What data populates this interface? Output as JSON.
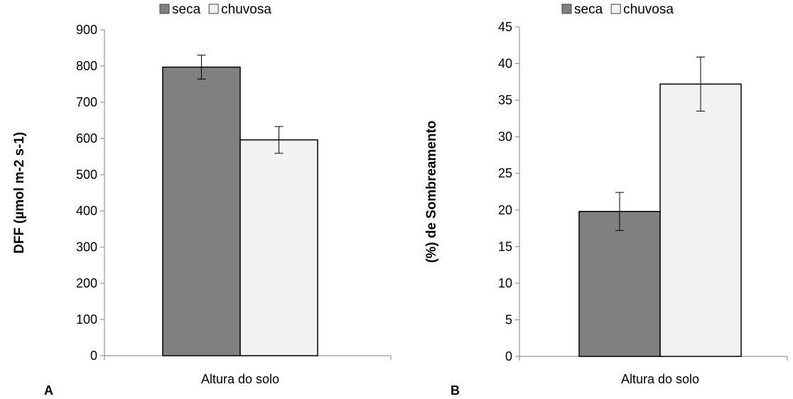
{
  "chart_data": [
    {
      "type": "bar",
      "panel_label": "A",
      "categories": [
        "Altura do solo"
      ],
      "series": [
        {
          "name": "seca",
          "values": [
            797
          ],
          "error": [
            33
          ],
          "color": "#808080"
        },
        {
          "name": "chuvosa",
          "values": [
            596
          ],
          "error": [
            37
          ],
          "color": "#f2f2f2"
        }
      ],
      "ylabel": "DFF (µmol m-2 s-1)",
      "ylim": [
        0,
        900
      ],
      "yticks": [
        0,
        100,
        200,
        300,
        400,
        500,
        600,
        700,
        800,
        900
      ],
      "grid": false,
      "legend": "top"
    },
    {
      "type": "bar",
      "panel_label": "B",
      "categories": [
        "Altura do solo"
      ],
      "series": [
        {
          "name": "seca",
          "values": [
            19.8
          ],
          "error": [
            2.6
          ],
          "color": "#808080"
        },
        {
          "name": "chuvosa",
          "values": [
            37.2
          ],
          "error": [
            3.7
          ],
          "color": "#f2f2f2"
        }
      ],
      "ylabel": "(%) de Sombreamento",
      "ylim": [
        0,
        45
      ],
      "yticks": [
        0,
        5,
        10,
        15,
        20,
        25,
        30,
        35,
        40,
        45
      ],
      "grid": false,
      "legend": "top"
    }
  ]
}
